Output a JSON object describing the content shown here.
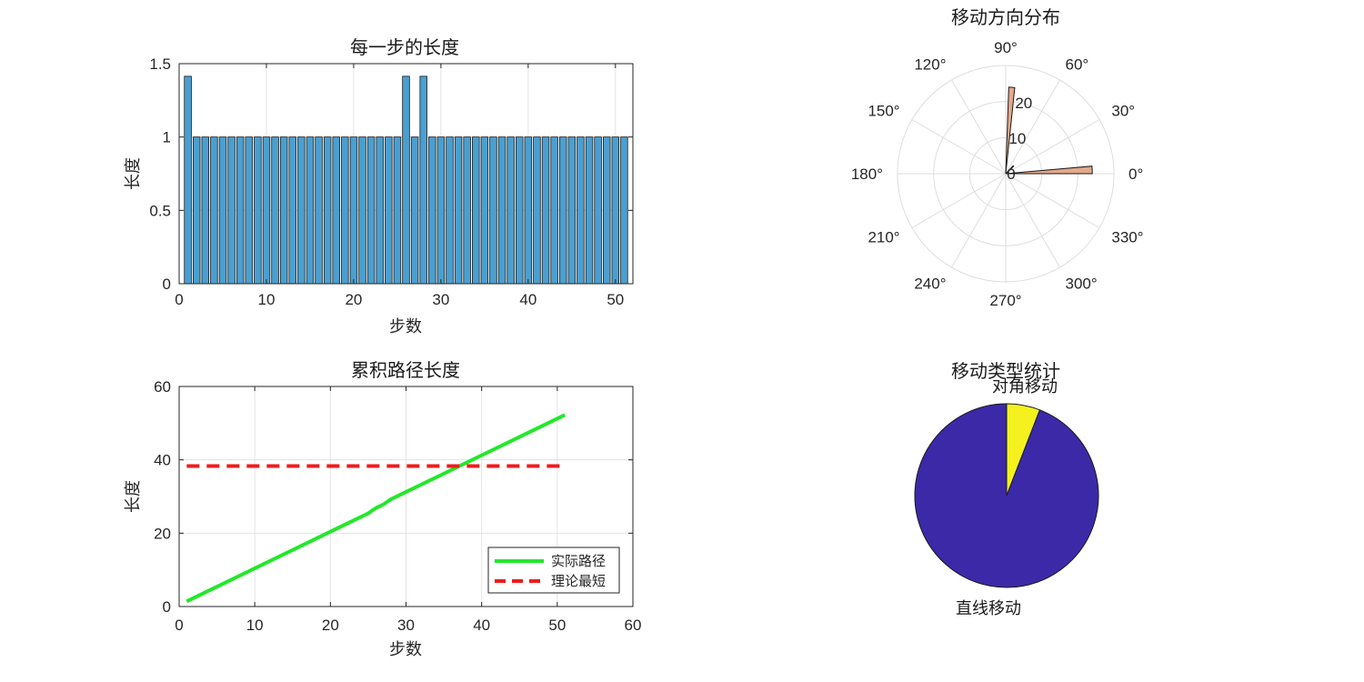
{
  "chart_data": [
    {
      "type": "bar",
      "title": "每一步的长度",
      "xlabel": "步数",
      "ylabel": "长度",
      "xlim": [
        0,
        52
      ],
      "ylim": [
        0,
        1.5
      ],
      "xticks": [
        "0",
        "10",
        "20",
        "30",
        "40",
        "50"
      ],
      "yticks": [
        "0",
        "0.5",
        "1",
        "1.5"
      ],
      "grid": true,
      "bar_color": "#4A9FD0",
      "categories": [
        1,
        2,
        3,
        4,
        5,
        6,
        7,
        8,
        9,
        10,
        11,
        12,
        13,
        14,
        15,
        16,
        17,
        18,
        19,
        20,
        21,
        22,
        23,
        24,
        25,
        26,
        27,
        28,
        29,
        30,
        31,
        32,
        33,
        34,
        35,
        36,
        37,
        38,
        39,
        40,
        41,
        42,
        43,
        44,
        45,
        46,
        47,
        48,
        49,
        50,
        51
      ],
      "values": [
        1.414,
        1,
        1,
        1,
        1,
        1,
        1,
        1,
        1,
        1,
        1,
        1,
        1,
        1,
        1,
        1,
        1,
        1,
        1,
        1,
        1,
        1,
        1,
        1,
        1,
        1.414,
        1,
        1.414,
        1,
        1,
        1,
        1,
        1,
        1,
        1,
        1,
        1,
        1,
        1,
        1,
        1,
        1,
        1,
        1,
        1,
        1,
        1,
        1,
        1,
        1,
        1
      ]
    },
    {
      "type": "polar_histogram",
      "title": "移动方向分布",
      "theta_ticks": [
        "0°",
        "30°",
        "60°",
        "90°",
        "120°",
        "150°",
        "180°",
        "210°",
        "240°",
        "270°",
        "300°",
        "330°"
      ],
      "r_ticks": [
        "0",
        "10",
        "20"
      ],
      "rlim": [
        0,
        30
      ],
      "grid": true,
      "bar_color": "#E3A98B",
      "bins": [
        {
          "theta_start_deg": 0,
          "theta_end_deg": 5,
          "count": 24
        },
        {
          "theta_start_deg": 84,
          "theta_end_deg": 88,
          "count": 24
        },
        {
          "theta_start_deg": 43,
          "theta_end_deg": 47,
          "count": 3
        }
      ]
    },
    {
      "type": "line",
      "title": "累积路径长度",
      "xlabel": "步数",
      "ylabel": "长度",
      "xlim": [
        0,
        60
      ],
      "ylim": [
        0,
        60
      ],
      "xticks": [
        "0",
        "10",
        "20",
        "30",
        "40",
        "50",
        "60"
      ],
      "yticks": [
        "0",
        "20",
        "40",
        "60"
      ],
      "grid": true,
      "legend_position": "bottom-right",
      "series": [
        {
          "name": "实际路径",
          "color": "#22E82A",
          "style": "solid",
          "x": [
            1,
            25,
            26,
            27,
            28,
            51
          ],
          "y": [
            1.41,
            25.41,
            26.83,
            27.83,
            29.24,
            52.24
          ]
        },
        {
          "name": "理论最短",
          "color": "#EE1C1C",
          "style": "dashed",
          "x": [
            1,
            51
          ],
          "y": [
            38.3,
            38.3
          ]
        }
      ]
    },
    {
      "type": "pie",
      "title": "移动类型统计",
      "slices": [
        {
          "label": "对角移动",
          "value": 3,
          "color": "#F4F11F"
        },
        {
          "label": "直线移动",
          "value": 48,
          "color": "#3B29A8"
        }
      ]
    }
  ]
}
